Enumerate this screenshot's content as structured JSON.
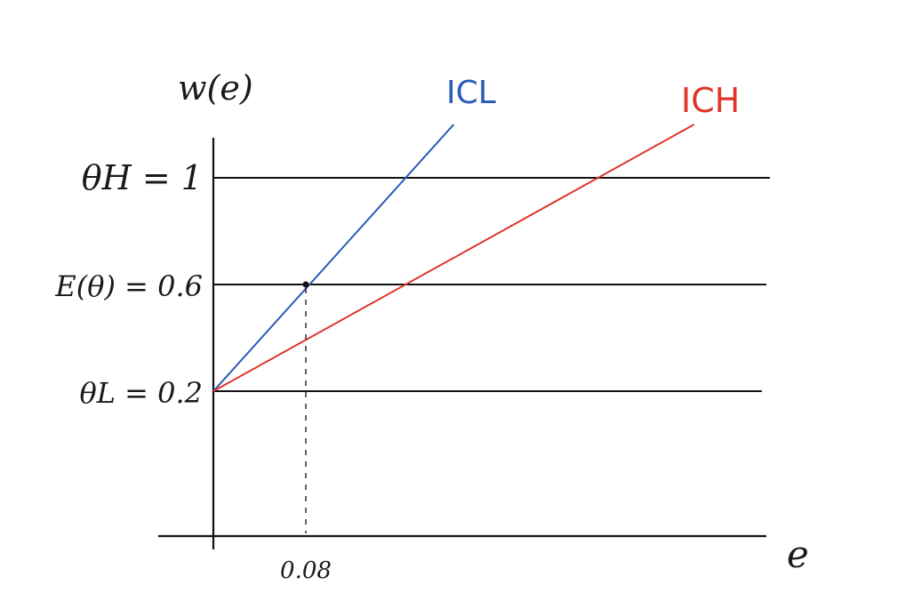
{
  "chart_data": {
    "type": "line",
    "title": "",
    "xlabel": "e",
    "ylabel": "w(e)",
    "grid": false,
    "xlim": [
      0,
      0.5
    ],
    "ylim": [
      -0.25,
      1.25
    ],
    "horizontal_lines": [
      {
        "y": 1.0,
        "label": "θH = 1"
      },
      {
        "y": 0.6,
        "label": "E(θ) = 0.6"
      },
      {
        "y": 0.2,
        "label": "θL = 0.2"
      }
    ],
    "series": [
      {
        "name": "ICL",
        "color": "#2b5cb8",
        "x": [
          0,
          0.208
        ],
        "y": [
          0.2,
          1.2
        ]
      },
      {
        "name": "ICH",
        "color": "#e0352c",
        "x": [
          0,
          0.416
        ],
        "y": [
          0.2,
          1.2
        ]
      }
    ],
    "highlight_point": {
      "x": 0.08,
      "y": 0.6
    },
    "x_tick_labels": [
      {
        "x": 0.08,
        "label": "0.08"
      }
    ]
  }
}
